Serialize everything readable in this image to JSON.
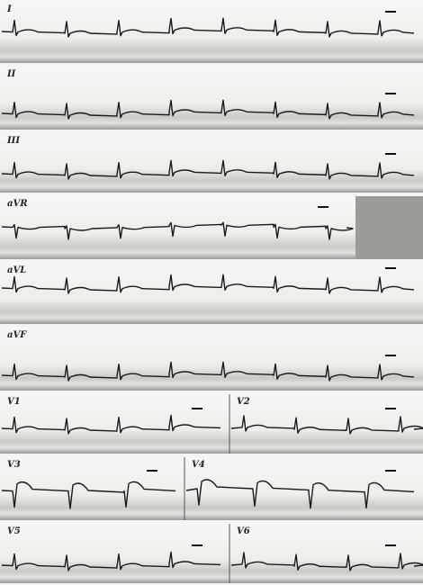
{
  "leads": [
    {
      "label": "I"
    },
    {
      "label": "II"
    },
    {
      "label": "III"
    },
    {
      "label": "aVR"
    },
    {
      "label": "aVL"
    },
    {
      "label": "aVF"
    },
    {
      "label": "V1"
    },
    {
      "label": "V2"
    },
    {
      "label": "V3"
    },
    {
      "label": "V4"
    },
    {
      "label": "V5"
    },
    {
      "label": "V6"
    }
  ]
}
